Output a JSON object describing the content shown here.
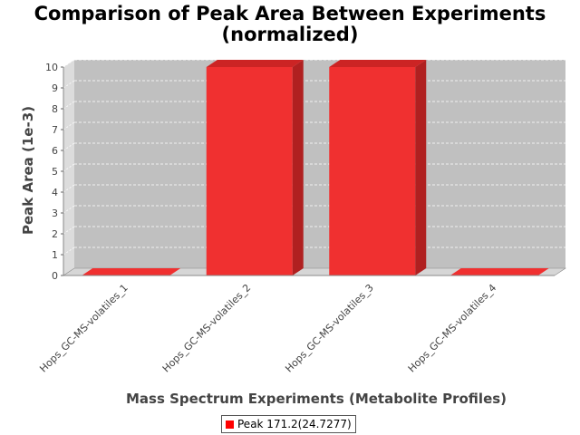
{
  "title_lines": [
    "Comparison of Peak Area Between Experiments",
    "(normalized)"
  ],
  "colors": {
    "bar_front": "#f03030",
    "bar_top": "#cc2424",
    "bar_side": "#b02020",
    "plot_back": "#c0c0c0",
    "plot_floor": "#d6d6d6",
    "plot_left": "#dcdcdc"
  },
  "chart_data": {
    "type": "bar",
    "title": "Comparison of Peak Area Between Experiments (normalized)",
    "xlabel": "Mass Spectrum Experiments (Metabolite Profiles)",
    "ylabel": "Peak Area (1e-3)",
    "categories": [
      "Hops_GC-MS-volatiles_1",
      "Hops_GC-MS-volatiles_2",
      "Hops_GC-MS-volatiles_3",
      "Hops_GC-MS-volatiles_4"
    ],
    "series": [
      {
        "name": "Peak 171.2(24.7277)",
        "values": [
          0,
          10,
          10,
          0
        ]
      }
    ],
    "ylim": [
      0,
      10
    ],
    "yticks": [
      0,
      1,
      2,
      3,
      4,
      5,
      6,
      7,
      8,
      9,
      10
    ],
    "grid": true,
    "legend_position": "bottom"
  }
}
